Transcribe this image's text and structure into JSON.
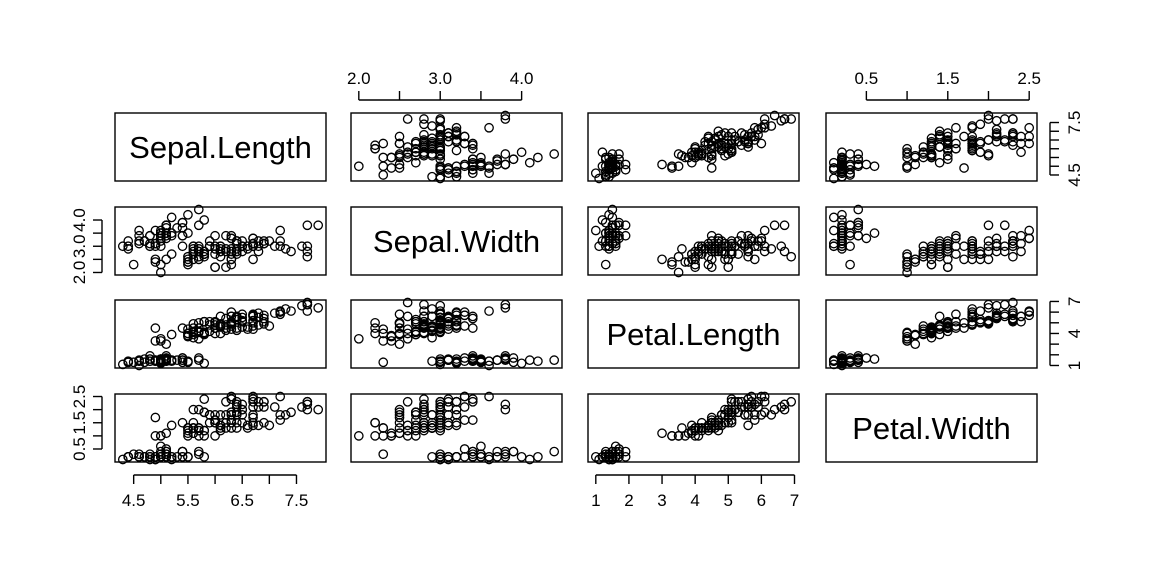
{
  "chart_data": {
    "type": "scatter",
    "subtype": "scatterplot-matrix",
    "variables": [
      "Sepal.Length",
      "Sepal.Width",
      "Petal.Length",
      "Petal.Width"
    ],
    "ranges": [
      [
        4.3,
        7.9
      ],
      [
        2.0,
        4.4
      ],
      [
        1.0,
        6.9
      ],
      [
        0.1,
        2.5
      ]
    ],
    "axes": {
      "top": [
        {
          "variable_index": 1,
          "ticks": [
            2.0,
            2.5,
            3.0,
            3.5,
            4.0
          ],
          "labels": [
            "2.0",
            "",
            "3.0",
            "",
            "4.0"
          ]
        },
        {
          "variable_index": 3,
          "ticks": [
            0.5,
            1.0,
            1.5,
            2.0,
            2.5
          ],
          "labels": [
            "0.5",
            "",
            "1.5",
            "",
            "2.5"
          ]
        }
      ],
      "bottom": [
        {
          "variable_index": 0,
          "ticks": [
            4.5,
            5.0,
            5.5,
            6.0,
            6.5,
            7.0,
            7.5
          ],
          "labels": [
            "4.5",
            "",
            "5.5",
            "",
            "6.5",
            "",
            "7.5"
          ]
        },
        {
          "variable_index": 2,
          "ticks": [
            1,
            2,
            3,
            4,
            5,
            6,
            7
          ],
          "labels": [
            "1",
            "2",
            "3",
            "4",
            "5",
            "6",
            "7"
          ]
        }
      ],
      "left": [
        {
          "variable_index": 1,
          "ticks": [
            2.0,
            2.5,
            3.0,
            3.5,
            4.0
          ],
          "labels": [
            "2.0",
            "",
            "3.0",
            "",
            "4.0"
          ]
        },
        {
          "variable_index": 3,
          "ticks": [
            0.5,
            1.0,
            1.5,
            2.0,
            2.5
          ],
          "labels": [
            "0.5",
            "",
            "1.5",
            "",
            "2.5"
          ]
        }
      ],
      "right": [
        {
          "variable_index": 0,
          "ticks": [
            4.5,
            5.0,
            5.5,
            6.0,
            6.5,
            7.0,
            7.5
          ],
          "labels": [
            "4.5",
            "",
            "",
            "",
            "",
            "",
            "7.5"
          ]
        },
        {
          "variable_index": 2,
          "ticks": [
            1,
            2,
            3,
            4,
            5,
            6,
            7
          ],
          "labels": [
            "1",
            "",
            "",
            "4",
            "",
            "",
            "7"
          ]
        }
      ]
    },
    "marker": "open-circle",
    "grid": false,
    "legend": "none",
    "points": [
      [
        5.1,
        3.5,
        1.4,
        0.2
      ],
      [
        4.9,
        3.0,
        1.4,
        0.2
      ],
      [
        4.7,
        3.2,
        1.3,
        0.2
      ],
      [
        4.6,
        3.1,
        1.5,
        0.2
      ],
      [
        5.0,
        3.6,
        1.4,
        0.2
      ],
      [
        5.4,
        3.9,
        1.7,
        0.4
      ],
      [
        4.6,
        3.4,
        1.4,
        0.3
      ],
      [
        5.0,
        3.4,
        1.5,
        0.2
      ],
      [
        4.4,
        2.9,
        1.4,
        0.2
      ],
      [
        4.9,
        3.1,
        1.5,
        0.1
      ],
      [
        5.4,
        3.7,
        1.5,
        0.2
      ],
      [
        4.8,
        3.4,
        1.6,
        0.2
      ],
      [
        4.8,
        3.0,
        1.4,
        0.1
      ],
      [
        4.3,
        3.0,
        1.1,
        0.1
      ],
      [
        5.8,
        4.0,
        1.2,
        0.2
      ],
      [
        5.7,
        4.4,
        1.5,
        0.4
      ],
      [
        5.4,
        3.9,
        1.3,
        0.4
      ],
      [
        5.1,
        3.5,
        1.4,
        0.3
      ],
      [
        5.7,
        3.8,
        1.7,
        0.3
      ],
      [
        5.1,
        3.8,
        1.5,
        0.3
      ],
      [
        5.4,
        3.4,
        1.7,
        0.2
      ],
      [
        5.1,
        3.7,
        1.5,
        0.4
      ],
      [
        4.6,
        3.6,
        1.0,
        0.2
      ],
      [
        5.1,
        3.3,
        1.7,
        0.5
      ],
      [
        4.8,
        3.4,
        1.9,
        0.2
      ],
      [
        5.0,
        3.0,
        1.6,
        0.2
      ],
      [
        5.0,
        3.4,
        1.6,
        0.4
      ],
      [
        5.2,
        3.5,
        1.5,
        0.2
      ],
      [
        5.2,
        3.4,
        1.4,
        0.2
      ],
      [
        4.7,
        3.2,
        1.6,
        0.2
      ],
      [
        4.8,
        3.1,
        1.6,
        0.2
      ],
      [
        5.4,
        3.4,
        1.5,
        0.4
      ],
      [
        5.2,
        4.1,
        1.5,
        0.1
      ],
      [
        5.5,
        4.2,
        1.4,
        0.2
      ],
      [
        4.9,
        3.1,
        1.5,
        0.2
      ],
      [
        5.0,
        3.2,
        1.2,
        0.2
      ],
      [
        5.5,
        3.5,
        1.3,
        0.2
      ],
      [
        4.9,
        3.6,
        1.4,
        0.1
      ],
      [
        4.4,
        3.0,
        1.3,
        0.2
      ],
      [
        5.1,
        3.4,
        1.5,
        0.2
      ],
      [
        5.0,
        3.5,
        1.3,
        0.3
      ],
      [
        4.5,
        2.3,
        1.3,
        0.3
      ],
      [
        4.4,
        3.2,
        1.3,
        0.2
      ],
      [
        5.0,
        3.5,
        1.6,
        0.6
      ],
      [
        5.1,
        3.8,
        1.9,
        0.4
      ],
      [
        4.8,
        3.0,
        1.4,
        0.3
      ],
      [
        5.1,
        3.8,
        1.6,
        0.2
      ],
      [
        4.6,
        3.2,
        1.4,
        0.2
      ],
      [
        5.3,
        3.7,
        1.5,
        0.2
      ],
      [
        5.0,
        3.3,
        1.4,
        0.2
      ],
      [
        7.0,
        3.2,
        4.7,
        1.4
      ],
      [
        6.4,
        3.2,
        4.5,
        1.5
      ],
      [
        6.9,
        3.1,
        4.9,
        1.5
      ],
      [
        5.5,
        2.3,
        4.0,
        1.3
      ],
      [
        6.5,
        2.8,
        4.6,
        1.5
      ],
      [
        5.7,
        2.8,
        4.5,
        1.3
      ],
      [
        6.3,
        3.3,
        4.7,
        1.6
      ],
      [
        4.9,
        2.4,
        3.3,
        1.0
      ],
      [
        6.6,
        2.9,
        4.6,
        1.3
      ],
      [
        5.2,
        2.7,
        3.9,
        1.4
      ],
      [
        5.0,
        2.0,
        3.5,
        1.0
      ],
      [
        5.9,
        3.0,
        4.2,
        1.5
      ],
      [
        6.0,
        2.2,
        4.0,
        1.0
      ],
      [
        6.1,
        2.9,
        4.7,
        1.4
      ],
      [
        5.6,
        2.9,
        3.6,
        1.3
      ],
      [
        6.7,
        3.1,
        4.4,
        1.4
      ],
      [
        5.6,
        3.0,
        4.5,
        1.5
      ],
      [
        5.8,
        2.7,
        4.1,
        1.0
      ],
      [
        6.2,
        2.2,
        4.5,
        1.5
      ],
      [
        5.6,
        2.5,
        3.9,
        1.1
      ],
      [
        5.9,
        3.2,
        4.8,
        1.8
      ],
      [
        6.1,
        2.8,
        4.0,
        1.3
      ],
      [
        6.3,
        2.5,
        4.9,
        1.5
      ],
      [
        6.1,
        2.8,
        4.7,
        1.2
      ],
      [
        6.4,
        2.9,
        4.3,
        1.3
      ],
      [
        6.6,
        3.0,
        4.4,
        1.4
      ],
      [
        6.8,
        2.8,
        4.8,
        1.4
      ],
      [
        6.7,
        3.0,
        5.0,
        1.7
      ],
      [
        6.0,
        2.9,
        4.5,
        1.5
      ],
      [
        5.7,
        2.6,
        3.5,
        1.0
      ],
      [
        5.5,
        2.4,
        3.8,
        1.1
      ],
      [
        5.5,
        2.4,
        3.7,
        1.0
      ],
      [
        5.8,
        2.7,
        3.9,
        1.2
      ],
      [
        6.0,
        2.7,
        5.1,
        1.6
      ],
      [
        5.4,
        3.0,
        4.5,
        1.5
      ],
      [
        6.0,
        3.4,
        4.5,
        1.6
      ],
      [
        6.7,
        3.1,
        4.7,
        1.5
      ],
      [
        6.3,
        2.3,
        4.4,
        1.3
      ],
      [
        5.6,
        3.0,
        4.1,
        1.3
      ],
      [
        5.5,
        2.5,
        4.0,
        1.3
      ],
      [
        5.5,
        2.6,
        4.4,
        1.2
      ],
      [
        6.1,
        3.0,
        4.6,
        1.4
      ],
      [
        5.8,
        2.6,
        4.0,
        1.2
      ],
      [
        5.0,
        2.3,
        3.3,
        1.0
      ],
      [
        5.6,
        2.7,
        4.2,
        1.3
      ],
      [
        5.7,
        3.0,
        4.2,
        1.2
      ],
      [
        5.7,
        2.9,
        4.2,
        1.3
      ],
      [
        6.2,
        2.9,
        4.3,
        1.3
      ],
      [
        5.1,
        2.5,
        3.0,
        1.1
      ],
      [
        5.7,
        2.8,
        4.1,
        1.3
      ],
      [
        6.3,
        3.3,
        6.0,
        2.5
      ],
      [
        5.8,
        2.7,
        5.1,
        1.9
      ],
      [
        7.1,
        3.0,
        5.9,
        2.1
      ],
      [
        6.3,
        2.9,
        5.6,
        1.8
      ],
      [
        6.5,
        3.0,
        5.8,
        2.2
      ],
      [
        7.6,
        3.0,
        6.6,
        2.1
      ],
      [
        4.9,
        2.5,
        4.5,
        1.7
      ],
      [
        7.3,
        2.9,
        6.3,
        1.8
      ],
      [
        6.7,
        2.5,
        5.8,
        1.8
      ],
      [
        7.2,
        3.6,
        6.1,
        2.5
      ],
      [
        6.5,
        3.2,
        5.1,
        2.0
      ],
      [
        6.4,
        2.7,
        5.3,
        1.9
      ],
      [
        6.8,
        3.0,
        5.5,
        2.1
      ],
      [
        5.7,
        2.5,
        5.0,
        2.0
      ],
      [
        5.8,
        2.8,
        5.1,
        2.4
      ],
      [
        6.4,
        3.2,
        5.3,
        2.3
      ],
      [
        6.5,
        3.0,
        5.5,
        1.8
      ],
      [
        7.7,
        3.8,
        6.7,
        2.2
      ],
      [
        7.7,
        2.6,
        6.9,
        2.3
      ],
      [
        6.0,
        2.2,
        5.0,
        1.5
      ],
      [
        6.9,
        3.2,
        5.7,
        2.3
      ],
      [
        5.6,
        2.8,
        4.9,
        2.0
      ],
      [
        7.7,
        2.8,
        6.7,
        2.0
      ],
      [
        6.3,
        2.7,
        4.9,
        1.8
      ],
      [
        6.7,
        3.3,
        5.7,
        2.1
      ],
      [
        7.2,
        3.2,
        6.0,
        1.8
      ],
      [
        6.2,
        2.8,
        4.8,
        1.8
      ],
      [
        6.1,
        3.0,
        4.9,
        1.8
      ],
      [
        6.4,
        2.8,
        5.6,
        2.1
      ],
      [
        7.2,
        3.0,
        5.8,
        1.6
      ],
      [
        7.4,
        2.8,
        6.1,
        1.9
      ],
      [
        7.9,
        3.8,
        6.4,
        2.0
      ],
      [
        6.4,
        2.8,
        5.6,
        2.2
      ],
      [
        6.3,
        2.8,
        5.1,
        1.5
      ],
      [
        6.1,
        2.6,
        5.6,
        1.4
      ],
      [
        7.7,
        3.0,
        6.1,
        2.3
      ],
      [
        6.3,
        3.4,
        5.6,
        2.4
      ],
      [
        6.4,
        3.1,
        5.5,
        1.8
      ],
      [
        6.0,
        3.0,
        4.8,
        1.8
      ],
      [
        6.9,
        3.1,
        5.4,
        2.1
      ],
      [
        6.7,
        3.1,
        5.6,
        2.4
      ],
      [
        6.9,
        3.1,
        5.1,
        2.3
      ],
      [
        5.8,
        2.7,
        5.1,
        1.9
      ],
      [
        6.8,
        3.2,
        5.9,
        2.3
      ],
      [
        6.7,
        3.3,
        5.7,
        2.5
      ],
      [
        6.7,
        3.0,
        5.2,
        2.3
      ],
      [
        6.3,
        2.5,
        5.0,
        1.9
      ],
      [
        6.5,
        3.0,
        5.2,
        2.0
      ],
      [
        6.2,
        3.4,
        5.4,
        2.3
      ],
      [
        5.9,
        3.0,
        5.1,
        1.8
      ]
    ]
  }
}
